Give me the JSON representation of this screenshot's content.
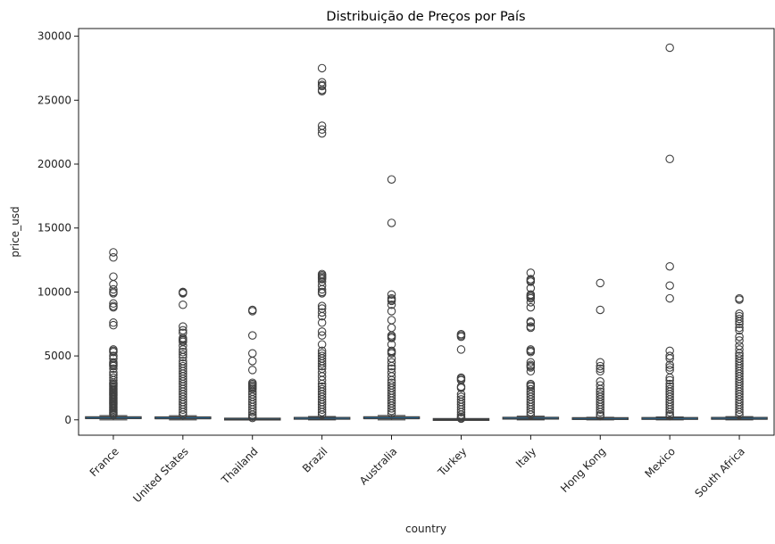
{
  "chart_data": {
    "type": "box",
    "title": "Distribuição de Preços por País",
    "xlabel": "country",
    "ylabel": "price_usd",
    "ylim": [
      -1200,
      30600
    ],
    "y_ticks": [
      0,
      5000,
      10000,
      15000,
      20000,
      25000,
      30000
    ],
    "categories": [
      "France",
      "United States",
      "Thailand",
      "Brazil",
      "Australia",
      "Turkey",
      "Italy",
      "Hong Kong",
      "Mexico",
      "South Africa"
    ],
    "series": [
      {
        "category": "France",
        "q1": 60,
        "median": 100,
        "q3": 170,
        "whisker_low": 0,
        "whisker_high": 330,
        "outliers": [
          13100,
          12700,
          11200,
          10600,
          10200,
          10000,
          9900,
          9100,
          8900,
          8800,
          7600,
          7400,
          5500,
          5400,
          5300,
          5000,
          4800,
          4500,
          4400,
          4300,
          4200,
          4000,
          3700,
          3500,
          3300,
          3100,
          2900,
          2800,
          2700,
          2600,
          2500,
          2400,
          2300,
          2200,
          2100,
          2000,
          1900,
          1800,
          1700,
          1600,
          1500,
          1400,
          1300,
          1200,
          1100,
          1000,
          900,
          800,
          700,
          600,
          500,
          400
        ]
      },
      {
        "category": "United States",
        "q1": 50,
        "median": 90,
        "q3": 160,
        "whisker_low": 0,
        "whisker_high": 320,
        "outliers": [
          10000,
          9950,
          9900,
          9000,
          7300,
          7000,
          6800,
          6400,
          6300,
          6200,
          6100,
          5800,
          5500,
          5300,
          5100,
          4900,
          4600,
          4400,
          4200,
          4000,
          3800,
          3600,
          3400,
          3200,
          3000,
          2800,
          2600,
          2400,
          2200,
          2000,
          1800,
          1600,
          1400,
          1200,
          1000,
          800,
          600,
          400
        ]
      },
      {
        "category": "Thailand",
        "q1": 15,
        "median": 30,
        "q3": 60,
        "whisker_low": 0,
        "whisker_high": 120,
        "outliers": [
          8600,
          8500,
          6600,
          5200,
          4600,
          3900,
          2900,
          2800,
          2700,
          2600,
          2500,
          2400,
          2200,
          2000,
          1800,
          1600,
          1400,
          1200,
          1000,
          800,
          600,
          400,
          250,
          150
        ]
      },
      {
        "category": "Brazil",
        "q1": 30,
        "median": 60,
        "q3": 120,
        "whisker_low": 0,
        "whisker_high": 260,
        "outliers": [
          27500,
          26400,
          26200,
          26100,
          25800,
          25700,
          23000,
          22700,
          22400,
          11400,
          11300,
          11200,
          11100,
          11000,
          10800,
          10500,
          10200,
          10000,
          9900,
          8900,
          8700,
          8400,
          8100,
          7600,
          6900,
          6600,
          5900,
          5400,
          5200,
          5000,
          4800,
          4600,
          4400,
          4200,
          4000,
          3700,
          3400,
          3100,
          2800,
          2600,
          2400,
          2200,
          2000,
          1800,
          1600,
          1400,
          1200,
          1000,
          800,
          600,
          400
        ]
      },
      {
        "category": "Australia",
        "q1": 50,
        "median": 90,
        "q3": 170,
        "whisker_low": 0,
        "whisker_high": 340,
        "outliers": [
          18800,
          15400,
          9800,
          9500,
          9400,
          9300,
          9000,
          8500,
          7800,
          7200,
          6600,
          6500,
          6400,
          5900,
          5400,
          5300,
          5200,
          4800,
          4500,
          4200,
          4000,
          3700,
          3400,
          3100,
          2900,
          2700,
          2500,
          2300,
          2100,
          1900,
          1700,
          1500,
          1300,
          1100,
          900,
          700,
          500
        ]
      },
      {
        "category": "Turkey",
        "q1": 5,
        "median": 15,
        "q3": 30,
        "whisker_low": 0,
        "whisker_high": 70,
        "outliers": [
          6700,
          6600,
          6500,
          5500,
          3300,
          3200,
          3100,
          2600,
          2500,
          2000,
          1800,
          1600,
          1400,
          1200,
          1000,
          800,
          600,
          400,
          250,
          150,
          100
        ]
      },
      {
        "category": "Italy",
        "q1": 40,
        "median": 70,
        "q3": 130,
        "whisker_low": 0,
        "whisker_high": 280,
        "outliers": [
          11500,
          11000,
          10900,
          10800,
          10300,
          9800,
          9700,
          9600,
          9500,
          9200,
          8800,
          7700,
          7600,
          7300,
          7200,
          5500,
          5400,
          5300,
          4500,
          4300,
          4200,
          4100,
          3800,
          2800,
          2700,
          2600,
          2400,
          2200,
          2000,
          1800,
          1600,
          1400,
          1200,
          1000,
          800,
          600,
          400
        ]
      },
      {
        "category": "Hong Kong",
        "q1": 30,
        "median": 50,
        "q3": 100,
        "whisker_low": 0,
        "whisker_high": 200,
        "outliers": [
          10700,
          8600,
          4500,
          4200,
          4000,
          3800,
          3000,
          2700,
          2400,
          2200,
          2000,
          1800,
          1600,
          1400,
          1200,
          1000,
          800,
          600,
          400,
          300
        ]
      },
      {
        "category": "Mexico",
        "q1": 25,
        "median": 50,
        "q3": 110,
        "whisker_low": 0,
        "whisker_high": 220,
        "outliers": [
          29100,
          20400,
          12000,
          10500,
          9500,
          5400,
          5000,
          4800,
          4300,
          4100,
          3900,
          3300,
          3100,
          2800,
          2600,
          2400,
          2200,
          2000,
          1800,
          1600,
          1400,
          1200,
          1000,
          800,
          600,
          400,
          300
        ]
      },
      {
        "category": "South Africa",
        "q1": 25,
        "median": 55,
        "q3": 120,
        "whisker_low": 0,
        "whisker_high": 250,
        "outliers": [
          9500,
          9400,
          8300,
          8100,
          7900,
          7700,
          7500,
          7200,
          7000,
          6500,
          6200,
          5800,
          5500,
          5200,
          5000,
          4800,
          4600,
          4400,
          4200,
          4000,
          3800,
          3600,
          3400,
          3200,
          3000,
          2800,
          2600,
          2400,
          2200,
          2000,
          1800,
          1600,
          1400,
          1200,
          1000,
          800,
          600,
          400
        ]
      }
    ],
    "box_color": "#1f77b4",
    "edge_color": "#3f3f3f",
    "grid": false,
    "legend": "none"
  }
}
